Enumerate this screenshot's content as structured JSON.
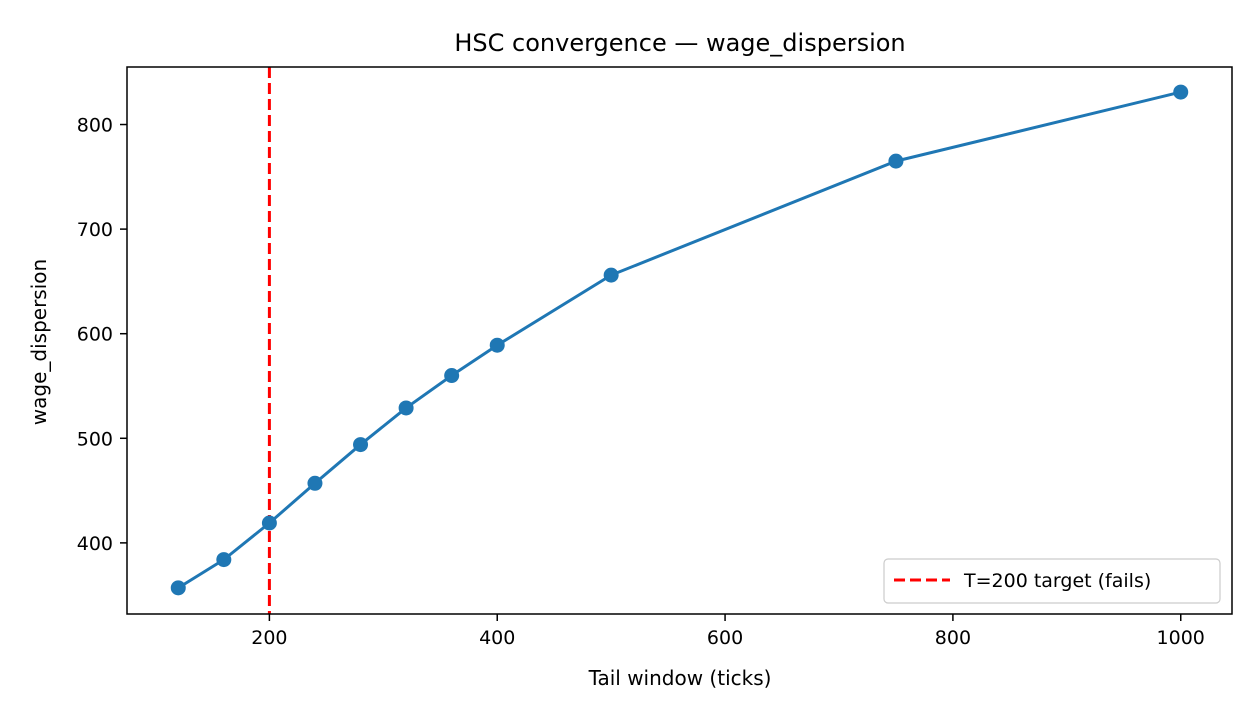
{
  "chart_data": {
    "type": "line",
    "title": "HSC convergence — wage_dispersion",
    "xlabel": "Tail window (ticks)",
    "ylabel": "wage_dispersion",
    "xlim": [
      75,
      1045
    ],
    "ylim": [
      332,
      855
    ],
    "xticks": [
      200,
      400,
      600,
      800,
      1000
    ],
    "yticks": [
      400,
      500,
      600,
      700,
      800
    ],
    "grid": false,
    "legend_position": "lower right",
    "series": [
      {
        "color": "#1f77b4",
        "marker": "circle",
        "x": [
          120,
          160,
          200,
          240,
          280,
          320,
          360,
          400,
          500,
          750,
          1000
        ],
        "y": [
          357,
          384,
          419,
          457,
          494,
          529,
          560,
          589,
          656,
          765,
          831
        ]
      }
    ],
    "reference_lines": [
      {
        "orientation": "vertical",
        "x": 200,
        "style": "dashed",
        "color": "#ff0000",
        "label": "T=200 target (fails)"
      }
    ]
  }
}
